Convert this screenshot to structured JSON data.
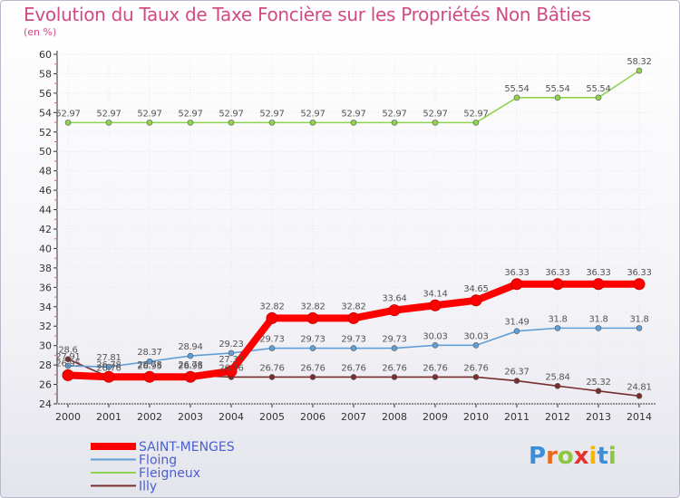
{
  "chart_data": {
    "type": "line",
    "title": "Evolution du Taux de Taxe Foncière sur les Propriétés Non Bâties",
    "subtitle": "(en %)",
    "xlabel": "",
    "ylabel": "",
    "ylim": [
      24,
      60
    ],
    "yticks": [
      24,
      26,
      28,
      30,
      32,
      34,
      36,
      38,
      40,
      42,
      44,
      46,
      48,
      50,
      52,
      54,
      56,
      58,
      60
    ],
    "categories": [
      "2000",
      "2001",
      "2002",
      "2003",
      "2004",
      "2005",
      "2006",
      "2007",
      "2008",
      "2009",
      "2010",
      "2011",
      "2012",
      "2013",
      "2014"
    ],
    "series": [
      {
        "name": "SAINT-MENGES",
        "color": "#ff0000",
        "values": [
          26.95,
          26.78,
          26.78,
          26.78,
          27.37,
          32.82,
          32.82,
          32.82,
          33.64,
          34.14,
          34.65,
          36.33,
          36.33,
          36.33,
          36.33
        ],
        "labels": [
          "26.95",
          "26.78",
          "26.78",
          "26.78",
          "27.37",
          "32.82",
          "32.82",
          "32.82",
          "33.64",
          "34.14",
          "34.65",
          "36.33",
          "36.33",
          "36.33",
          "36.33"
        ]
      },
      {
        "name": "Floing",
        "color": "#5f9fd8",
        "values": [
          27.91,
          27.81,
          28.37,
          28.94,
          29.23,
          29.73,
          29.73,
          29.73,
          29.73,
          30.03,
          30.03,
          31.49,
          31.8,
          31.8,
          31.8
        ],
        "labels": [
          "27.91",
          "27.81",
          "28.37",
          "28.94",
          "29.23",
          "29.73",
          "29.73",
          "29.73",
          "29.73",
          "30.03",
          "30.03",
          "31.49",
          "31.8",
          "31.8",
          "31.8"
        ]
      },
      {
        "name": "Fleigneux",
        "color": "#8fd34f",
        "values": [
          52.97,
          52.97,
          52.97,
          52.97,
          52.97,
          52.97,
          52.97,
          52.97,
          52.97,
          52.97,
          52.97,
          55.54,
          55.54,
          55.54,
          58.32
        ],
        "labels": [
          "52.97",
          "52.97",
          "52.97",
          "52.97",
          "52.97",
          "52.97",
          "52.97",
          "52.97",
          "52.97",
          "52.97",
          "52.97",
          "55.54",
          "55.54",
          "55.54",
          "58.32"
        ]
      },
      {
        "name": "Illy",
        "color": "#7a2d2d",
        "values": [
          28.6,
          26.76,
          26.95,
          26.95,
          26.76,
          26.76,
          26.76,
          26.76,
          26.76,
          26.76,
          26.76,
          26.37,
          25.84,
          25.32,
          24.81
        ],
        "labels": [
          "28.6",
          "26.76",
          "26.95",
          "26.95",
          "26.76",
          "26.76",
          "26.76",
          "26.76",
          "26.76",
          "26.76",
          "26.76",
          "26.37",
          "25.84",
          "25.32",
          "24.81"
        ]
      }
    ],
    "legend_position": "bottom-left"
  },
  "logo": {
    "text": "Proxiti",
    "letters": [
      "P",
      "r",
      "o",
      "x",
      "i",
      "t",
      "i"
    ],
    "colors": [
      "#3b8fd9",
      "#e96a1a",
      "#8dc63f",
      "#e3342f",
      "#f7b500",
      "#3b8fd9",
      "#8dc63f"
    ]
  }
}
